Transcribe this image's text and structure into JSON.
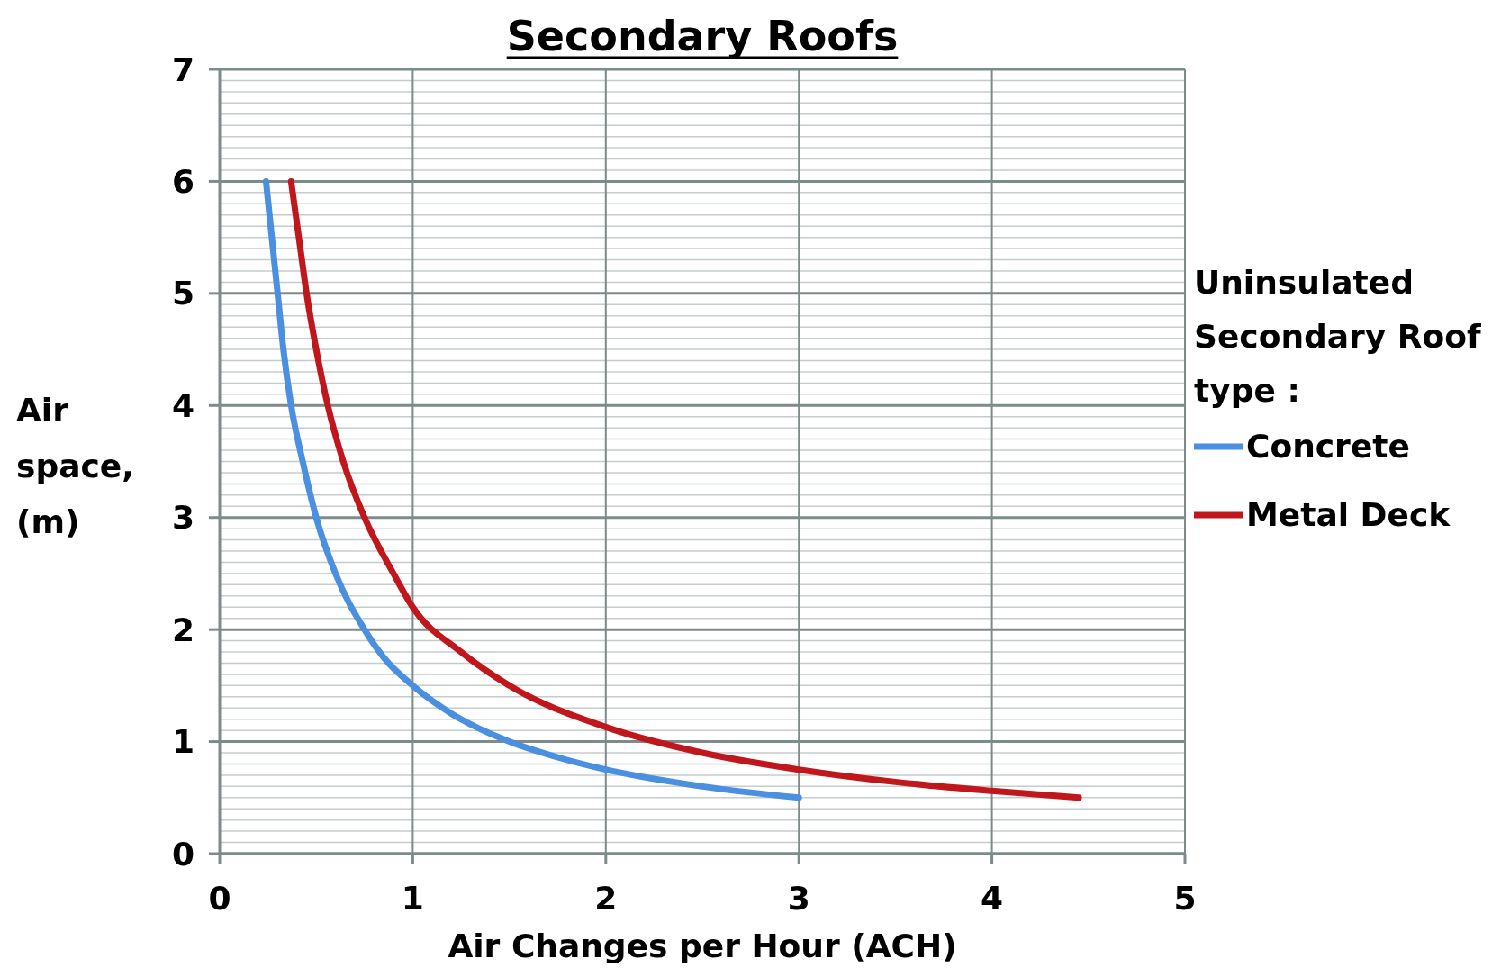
{
  "chart_data": {
    "type": "line",
    "title": "Secondary Roofs",
    "xlabel": "Air Changes per Hour (ACH)",
    "ylabel": "Air space, (m)",
    "legend_title": "Uninsulated Secondary Roof type :",
    "legend": "right",
    "grid": true,
    "marker": "none",
    "line_style": "solid",
    "xlim": [
      0,
      5
    ],
    "xticks": [
      0,
      1,
      2,
      3,
      4,
      5
    ],
    "ylim": [
      0,
      7
    ],
    "yticks": [
      0,
      {
        "value": 0.1,
        "label": null
      },
      {
        "value": 0.2,
        "label": null
      },
      {
        "value": 0.3,
        "label": null
      },
      {
        "value": 0.4,
        "label": null
      },
      {
        "value": 0.5,
        "label": null
      },
      {
        "value": 0.6,
        "label": null
      },
      {
        "value": 0.7,
        "label": null
      },
      {
        "value": 0.8,
        "label": null
      },
      {
        "value": 0.9,
        "label": null
      },
      1,
      {
        "value": 1.1,
        "label": null
      },
      {
        "value": 1.2,
        "label": null
      },
      {
        "value": 1.3,
        "label": null
      },
      {
        "value": 1.4,
        "label": null
      },
      {
        "value": 1.5,
        "label": null
      },
      {
        "value": 1.6,
        "label": null
      },
      {
        "value": 1.7,
        "label": null
      },
      {
        "value": 1.8,
        "label": null
      },
      {
        "value": 1.9,
        "label": null
      },
      2,
      {
        "value": 2.1,
        "label": null
      },
      {
        "value": 2.2,
        "label": null
      },
      {
        "value": 2.3,
        "label": null
      },
      {
        "value": 2.4,
        "label": null
      },
      {
        "value": 2.5,
        "label": null
      },
      {
        "value": 2.6,
        "label": null
      },
      {
        "value": 2.7,
        "label": null
      },
      {
        "value": 2.8,
        "label": null
      },
      {
        "value": 2.9,
        "label": null
      },
      3,
      {
        "value": 3.1,
        "label": null
      },
      {
        "value": 3.2,
        "label": null
      },
      {
        "value": 3.3,
        "label": null
      },
      {
        "value": 3.4,
        "label": null
      },
      {
        "value": 3.5,
        "label": null
      },
      {
        "value": 3.6,
        "label": null
      },
      {
        "value": 3.7,
        "label": null
      },
      {
        "value": 3.8,
        "label": null
      },
      {
        "value": 3.9,
        "label": null
      },
      4,
      {
        "value": 4.1,
        "label": null
      },
      {
        "value": 4.2,
        "label": null
      },
      {
        "value": 4.3,
        "label": null
      },
      {
        "value": 4.4,
        "label": null
      },
      {
        "value": 4.5,
        "label": null
      },
      {
        "value": 4.6,
        "label": null
      },
      {
        "value": 4.7,
        "label": null
      },
      {
        "value": 4.8,
        "label": null
      },
      {
        "value": 4.9,
        "label": null
      },
      5,
      {
        "value": 5.1,
        "label": null
      },
      {
        "value": 5.2,
        "label": null
      },
      {
        "value": 5.3,
        "label": null
      },
      {
        "value": 5.4,
        "label": null
      },
      {
        "value": 5.5,
        "label": null
      },
      {
        "value": 5.6,
        "label": null
      },
      {
        "value": 5.7,
        "label": null
      },
      {
        "value": 5.8,
        "label": null
      },
      {
        "value": 5.9,
        "label": null
      },
      6,
      {
        "value": 6.1,
        "label": null
      },
      {
        "value": 6.2,
        "label": null
      },
      {
        "value": 6.3,
        "label": null
      },
      {
        "value": 6.4,
        "label": null
      },
      {
        "value": 6.5,
        "label": null
      },
      {
        "value": 6.6,
        "label": null
      },
      {
        "value": 6.7,
        "label": null
      },
      {
        "value": 6.8,
        "label": null
      },
      {
        "value": 6.9,
        "label": null
      },
      7
    ],
    "series": [
      {
        "name": "Concrete",
        "color": "#4a8fe0",
        "x": [
          0.24,
          0.27,
          0.3,
          0.33,
          0.37,
          0.43,
          0.5,
          0.6,
          0.75,
          0.85,
          1,
          1.2,
          1.5,
          1.75,
          2,
          2.5,
          3
        ],
        "values": [
          6,
          5.5,
          5,
          4.5,
          4,
          3.5,
          3,
          2.5,
          2,
          1.75,
          1.5,
          1.25,
          1,
          0.86,
          0.75,
          0.6,
          0.5
        ]
      },
      {
        "name": "Metal Deck",
        "color": "#c0171c",
        "x": [
          0.37,
          0.41,
          0.45,
          0.5,
          0.56,
          0.64,
          0.75,
          0.9,
          1,
          1.25,
          1.5,
          2,
          2.5,
          3,
          3.5,
          4,
          4.45
        ],
        "values": [
          6,
          5.5,
          5,
          4.5,
          4,
          3.5,
          3,
          2.5,
          2.2,
          1.8,
          1.5,
          1.13,
          0.9,
          0.75,
          0.64,
          0.56,
          0.5
        ]
      }
    ]
  }
}
